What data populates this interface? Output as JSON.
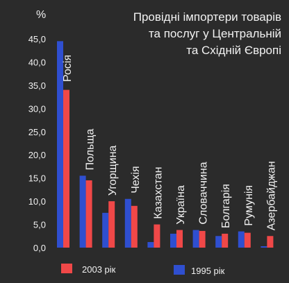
{
  "chart_data": {
    "type": "bar",
    "title_lines": [
      "Провідні імпортери товарів",
      "та послуг у Центральній",
      "та Східній Європі"
    ],
    "ylabel": "%",
    "ylim": [
      0,
      45
    ],
    "yticks": [
      "0,0",
      "5,0",
      "10,0",
      "15,0",
      "20,0",
      "25,0",
      "30,0",
      "35,0",
      "40,0",
      "45,0"
    ],
    "grid": false,
    "legend_position": "bottom",
    "categories": [
      "Росія",
      "Польща",
      "Угорщина",
      "Чехія",
      "Казахстан",
      "Україна",
      "Словаччина",
      "Болгарія",
      "Румунія",
      "Азербайджан"
    ],
    "series": [
      {
        "name": "1995 рік",
        "color": "#2f4fd0",
        "values": [
          44.5,
          15.5,
          7.5,
          10.5,
          1.2,
          3.0,
          3.8,
          2.5,
          3.5,
          0.3
        ]
      },
      {
        "name": "2003 рік",
        "color": "#f04848",
        "values": [
          34.0,
          14.5,
          10.0,
          9.0,
          5.0,
          3.8,
          3.6,
          3.0,
          3.2,
          2.5
        ]
      }
    ],
    "legend_order": [
      "2003 рік",
      "1995 рік"
    ],
    "colors": {
      "background": "#2b2b2b",
      "text": "#f2f2f2"
    }
  }
}
